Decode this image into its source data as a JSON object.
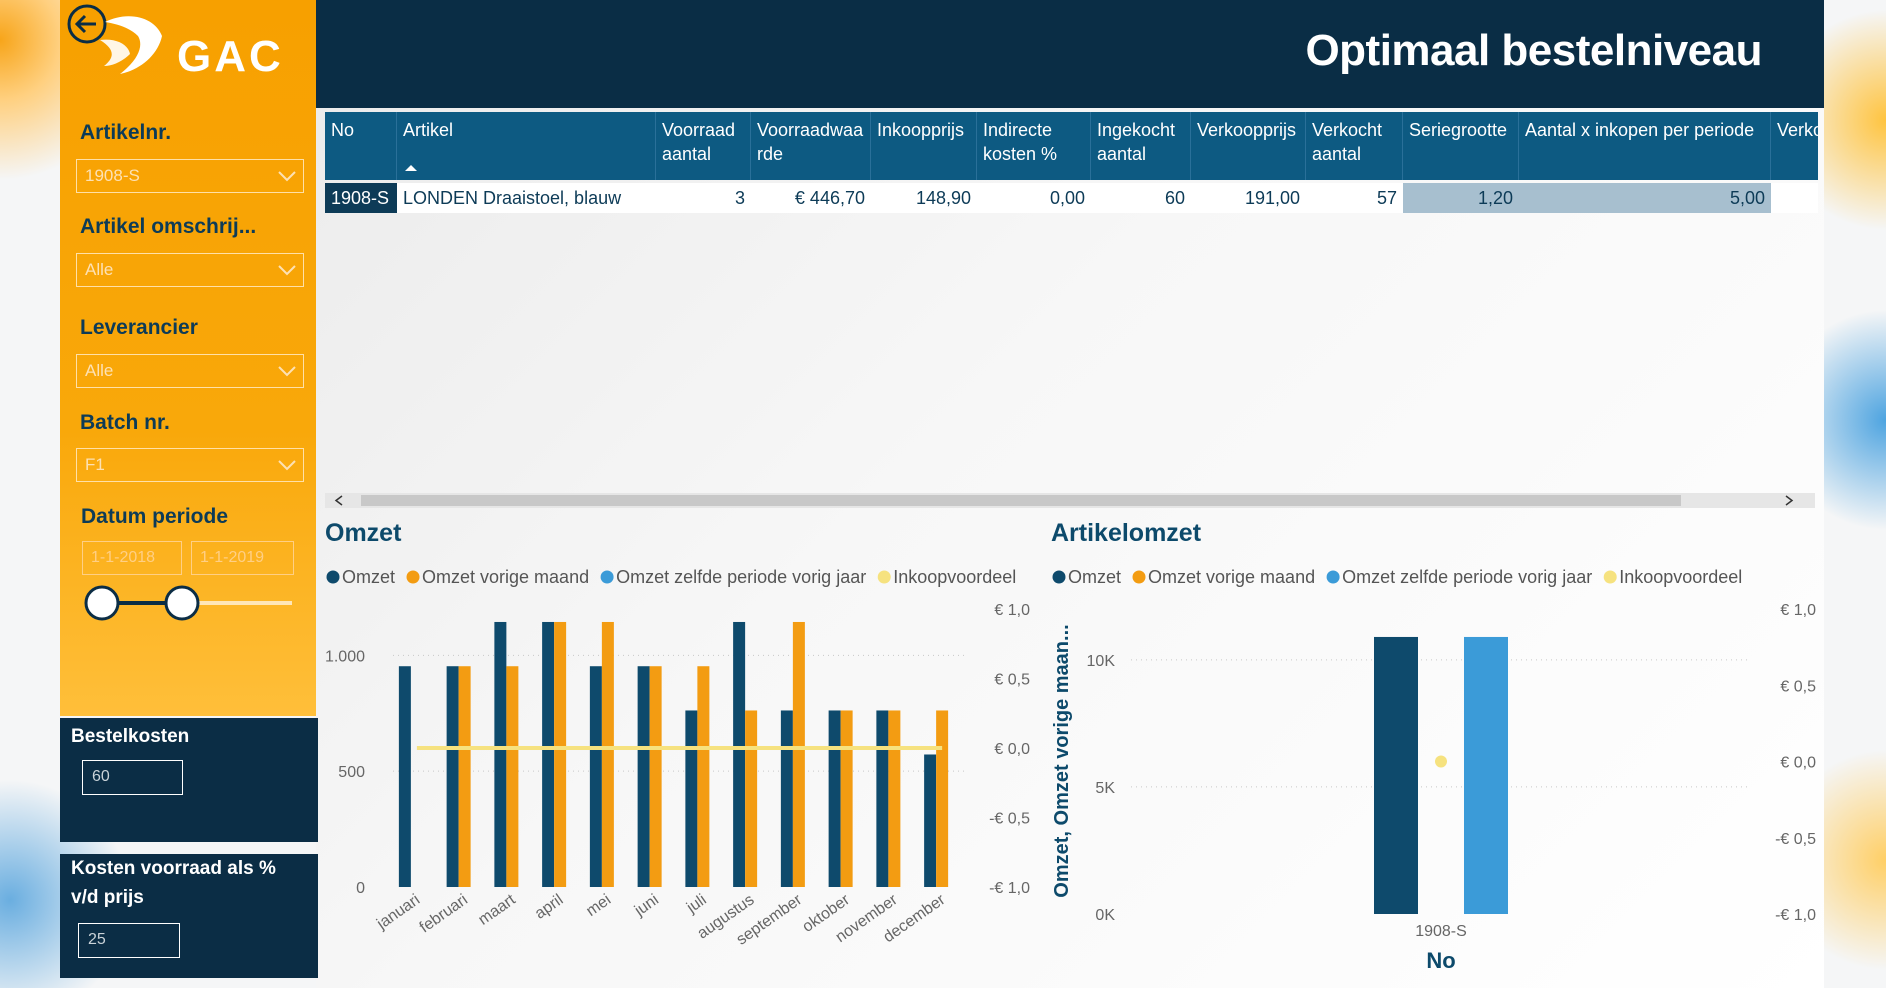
{
  "header": {
    "logo": "GAC",
    "title": "Optimaal bestelniveau"
  },
  "filters": [
    {
      "label": "Artikelnr.",
      "value": "1908-S"
    },
    {
      "label": "Artikel omschrij...",
      "value": "Alle"
    },
    {
      "label": "Leverancier",
      "value": "Alle"
    },
    {
      "label": "Batch nr.",
      "value": "F1"
    }
  ],
  "date_filter": {
    "label": "Datum periode",
    "from": "1-1-2018",
    "to": "1-1-2019"
  },
  "inputs": [
    {
      "label": "Bestelkosten",
      "value": "60"
    },
    {
      "label": "Kosten voorraad als % v/d prijs",
      "value": "25"
    }
  ],
  "table": {
    "columns": [
      "No",
      "Artikel",
      "Voorraad aantal",
      "Voorraadwaarde",
      "Inkoopprijs",
      "Indirecte kosten %",
      "Ingekocht aantal",
      "Verkoopprijs",
      "Verkocht aantal",
      "Seriegrootte",
      "Aantal x inkopen per periode",
      "Verko"
    ],
    "rows": [
      [
        "1908-S",
        "LONDEN Draaistoel, blauw",
        "3",
        "€ 446,70",
        "148,90",
        "0,00",
        "60",
        "191,00",
        "57",
        "1,20",
        "5,00",
        ""
      ]
    ]
  },
  "chart_data": [
    {
      "type": "bar",
      "title": "Omzet",
      "categories": [
        "januari",
        "februari",
        "maart",
        "april",
        "mei",
        "juni",
        "juli",
        "augustus",
        "september",
        "oktober",
        "november",
        "december"
      ],
      "series": [
        {
          "name": "Omzet",
          "color": "#0e4a6c",
          "values": [
            953,
            953,
            1144,
            1144,
            953,
            953,
            762,
            1144,
            762,
            762,
            762,
            572
          ]
        },
        {
          "name": "Omzet vorige maand",
          "color": "#f39c12",
          "values": [
            null,
            953,
            953,
            1144,
            1144,
            953,
            953,
            762,
            1144,
            762,
            762,
            762
          ]
        },
        {
          "name": "Omzet zelfde periode vorig jaar",
          "color": "#3b9bd8",
          "values": [
            null,
            null,
            null,
            null,
            null,
            null,
            null,
            null,
            null,
            null,
            null,
            null
          ]
        },
        {
          "name": "Inkoopvoordeel",
          "color": "#f6e27f",
          "type": "line",
          "axis": "y2",
          "values": [
            0,
            0,
            0,
            0,
            0,
            0,
            0,
            0,
            0,
            0,
            0,
            0
          ]
        }
      ],
      "ylim": [
        0,
        1200
      ],
      "yticks": [
        0,
        500,
        {
          "value": 1000,
          "label": "1.000"
        }
      ],
      "y2lim": [
        -1,
        1
      ],
      "y2ticks": [
        {
          "value": -1,
          "label": "-€ 1,0"
        },
        {
          "value": -0.5,
          "label": "-€ 0,5"
        },
        {
          "value": 0,
          "label": "€ 0,0"
        },
        {
          "value": 0.5,
          "label": "€ 0,5"
        },
        {
          "value": 1,
          "label": "€ 1,0"
        }
      ],
      "grid": true
    },
    {
      "type": "bar",
      "title": "Artikelomzet",
      "xlabel": "No",
      "ylabel": "Omzet, Omzet vorige maan...",
      "categories": [
        "1908-S"
      ],
      "series": [
        {
          "name": "Omzet",
          "color": "#0e4a6c",
          "values": [
            10900
          ]
        },
        {
          "name": "Omzet vorige maand",
          "color": "#f39c12",
          "values": [
            null
          ]
        },
        {
          "name": "Omzet zelfde periode vorig jaar",
          "color": "#3b9bd8",
          "values": [
            10900
          ]
        },
        {
          "name": "Inkoopvoordeel",
          "color": "#f6e27f",
          "type": "line",
          "axis": "y2",
          "values": [
            0
          ]
        }
      ],
      "ylim": [
        0,
        12000
      ],
      "yticks": [
        {
          "value": 0,
          "label": "0K"
        },
        {
          "value": 5000,
          "label": "5K"
        },
        {
          "value": 10000,
          "label": "10K"
        }
      ],
      "y2lim": [
        -1,
        1
      ],
      "y2ticks": [
        {
          "value": -1,
          "label": "-€ 1,0"
        },
        {
          "value": -0.5,
          "label": "-€ 0,5"
        },
        {
          "value": 0,
          "label": "€ 0,0"
        },
        {
          "value": 0.5,
          "label": "€ 0,5"
        },
        {
          "value": 1,
          "label": "€ 1,0"
        }
      ],
      "grid": true
    }
  ]
}
